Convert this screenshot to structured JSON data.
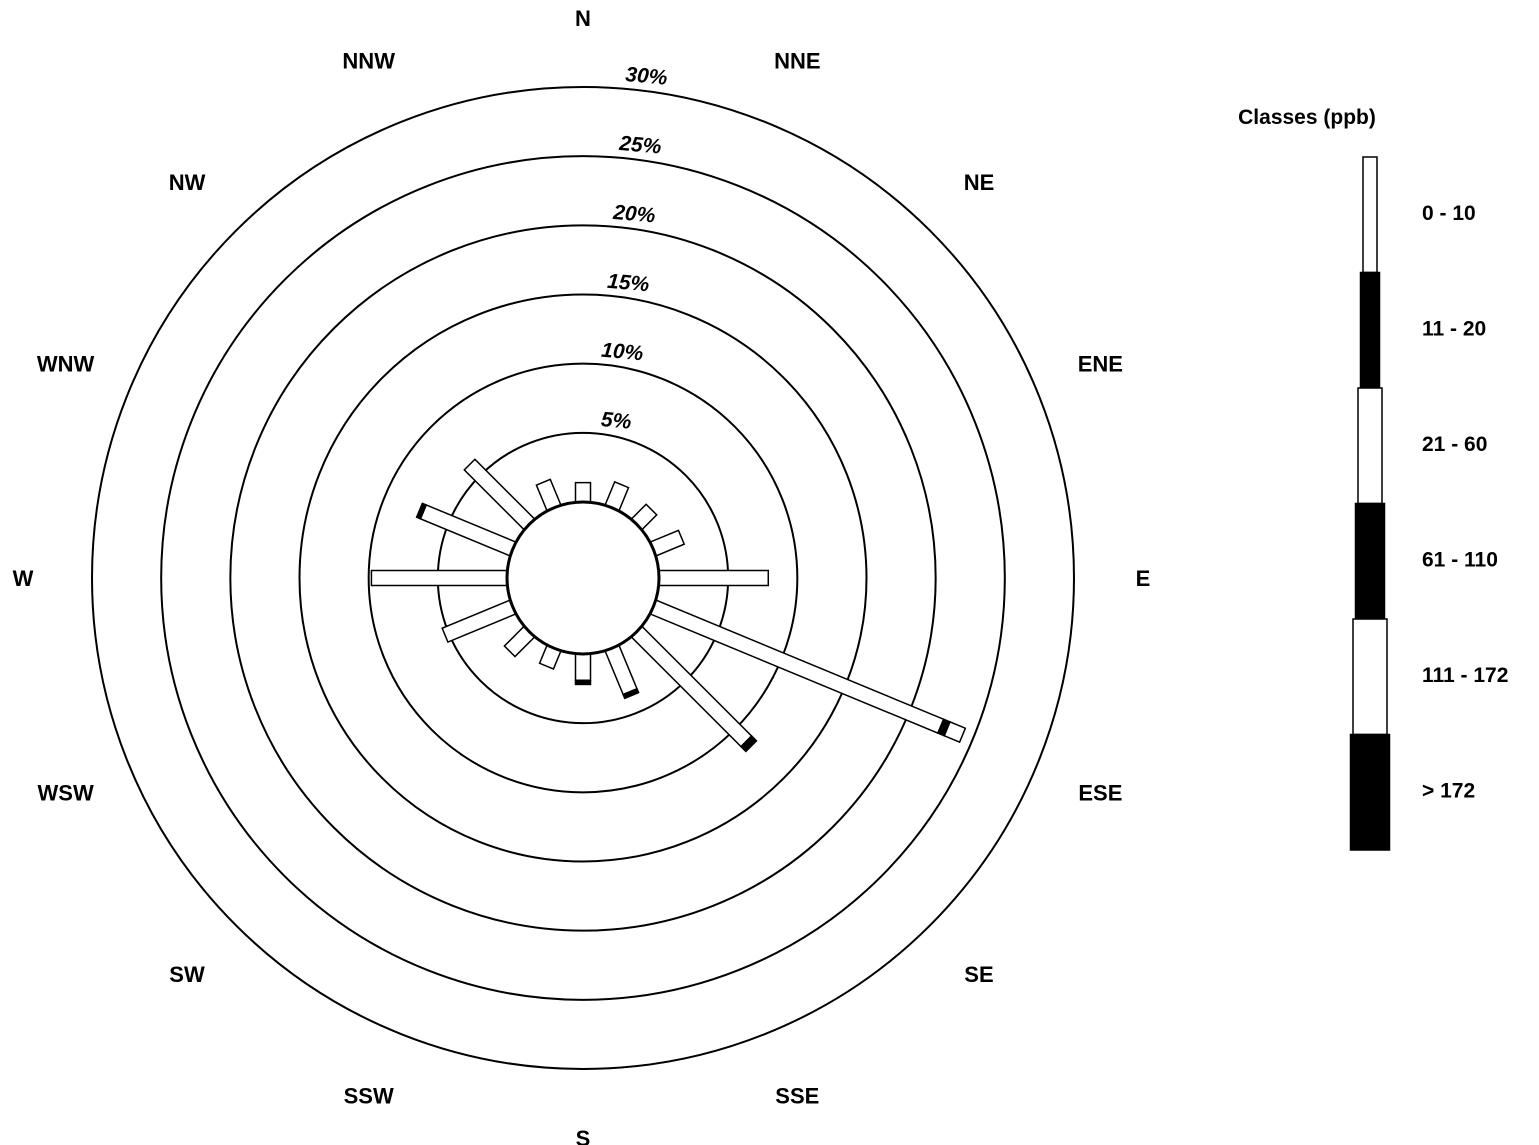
{
  "chart_data": {
    "type": "wind-rose",
    "radial_unit": "%",
    "radial_max": 30,
    "rings": [
      {
        "value": 5,
        "label": "5%"
      },
      {
        "value": 10,
        "label": "10%"
      },
      {
        "value": 15,
        "label": "15%"
      },
      {
        "value": 20,
        "label": "20%"
      },
      {
        "value": 25,
        "label": "25%"
      },
      {
        "value": 30,
        "label": "30%"
      }
    ],
    "directions": [
      {
        "label": "N",
        "angle": 0
      },
      {
        "label": "NNE",
        "angle": 22.5
      },
      {
        "label": "NE",
        "angle": 45
      },
      {
        "label": "ENE",
        "angle": 67.5
      },
      {
        "label": "E",
        "angle": 90
      },
      {
        "label": "ESE",
        "angle": 112.5
      },
      {
        "label": "SE",
        "angle": 135
      },
      {
        "label": "SSE",
        "angle": 157.5
      },
      {
        "label": "S",
        "angle": 180
      },
      {
        "label": "SSW",
        "angle": 202.5
      },
      {
        "label": "SW",
        "angle": 225
      },
      {
        "label": "WSW",
        "angle": 247.5
      },
      {
        "label": "W",
        "angle": 270
      },
      {
        "label": "WNW",
        "angle": 292.5
      },
      {
        "label": "NW",
        "angle": 315
      },
      {
        "label": "NNW",
        "angle": 337.5
      }
    ],
    "calm_circle_value": 0,
    "legend": {
      "title": "Classes (ppb)",
      "classes": [
        {
          "label": "0 - 10",
          "fill": "#ffffff"
        },
        {
          "label": "11 - 20",
          "fill": "#000000"
        },
        {
          "label": "21 - 60",
          "fill": "#ffffff"
        },
        {
          "label": "61 - 110",
          "fill": "#000000"
        },
        {
          "label": "111 - 172",
          "fill": "#ffffff"
        },
        {
          "label": "> 172",
          "fill": "#000000"
        }
      ]
    },
    "series": [
      {
        "direction": "N",
        "segments": [
          1.4
        ]
      },
      {
        "direction": "NNE",
        "segments": [
          1.8
        ]
      },
      {
        "direction": "NE",
        "segments": [
          1.5
        ]
      },
      {
        "direction": "ENE",
        "segments": [
          2.2
        ]
      },
      {
        "direction": "E",
        "segments": [
          7.9
        ]
      },
      {
        "direction": "ESE",
        "segments": [
          22.5,
          0.5,
          1.2
        ]
      },
      {
        "direction": "SE",
        "segments": [
          11.2,
          0.5
        ]
      },
      {
        "direction": "SSE",
        "segments": [
          3.4,
          0.3
        ]
      },
      {
        "direction": "S",
        "segments": [
          1.9,
          0.3
        ]
      },
      {
        "direction": "SSW",
        "segments": [
          1.4
        ]
      },
      {
        "direction": "SW",
        "segments": [
          2.0
        ]
      },
      {
        "direction": "WSW",
        "segments": [
          5.3
        ]
      },
      {
        "direction": "W",
        "segments": [
          9.8
        ]
      },
      {
        "direction": "WNW",
        "segments": [
          7.0,
          0.3
        ]
      },
      {
        "direction": "NW",
        "segments": [
          6.1
        ]
      },
      {
        "direction": "NNW",
        "segments": [
          2.0
        ]
      }
    ]
  }
}
